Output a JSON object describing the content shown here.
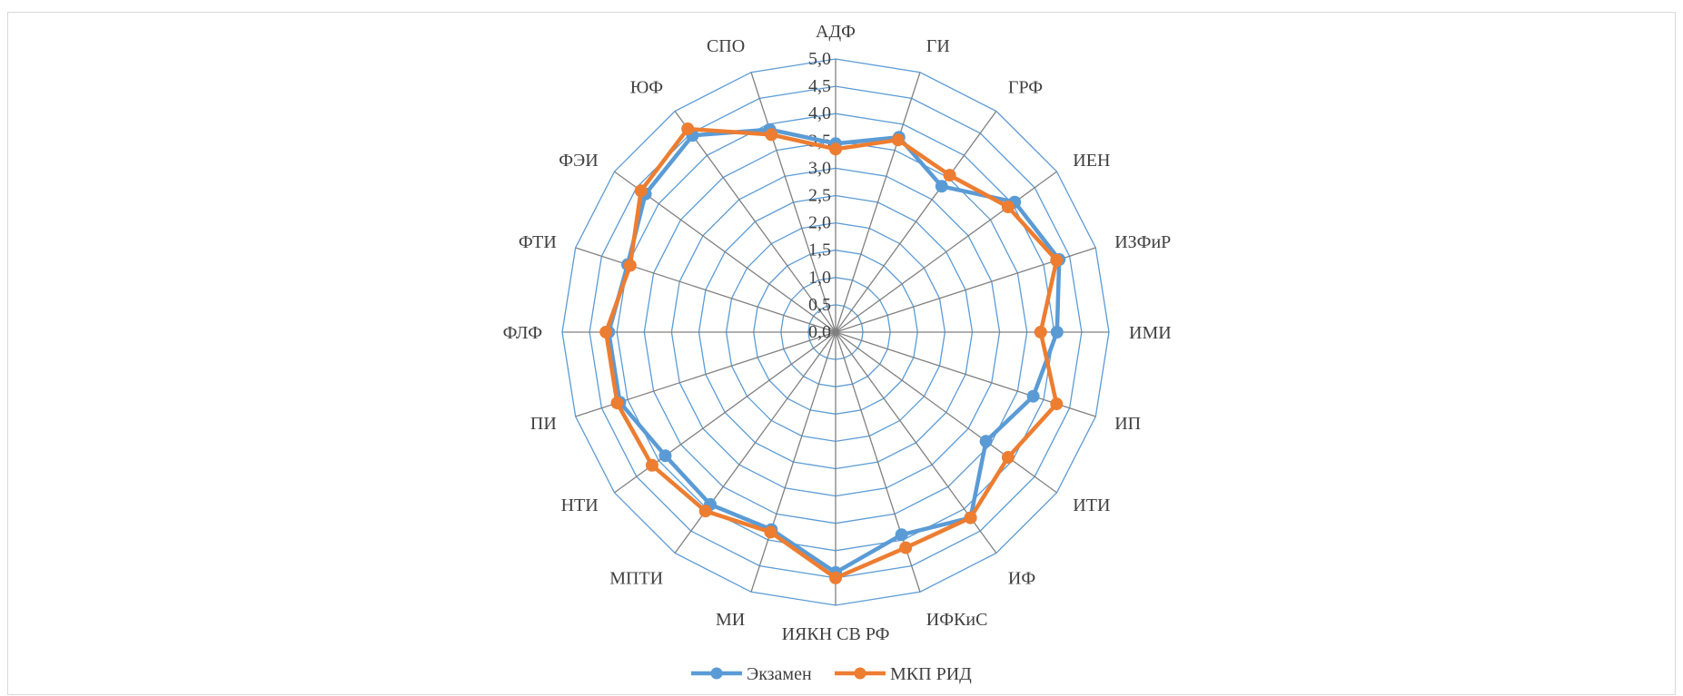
{
  "chart_data": {
    "type": "radar",
    "categories": [
      "АДФ",
      "ГИ",
      "ГРФ",
      "ИЕН",
      "ИЗФиР",
      "ИМИ",
      "ИП",
      "ИТИ",
      "ИФ",
      "ИФКиС",
      "ИЯКН СВ РФ",
      "МИ",
      "МПТИ",
      "НТИ",
      "ПИ",
      "ФЛФ",
      "ФТИ",
      "ФЭИ",
      "ЮФ",
      "СПО"
    ],
    "series": [
      {
        "name": "Экзамен",
        "color": "#5b9bd5",
        "values": [
          3.45,
          3.75,
          3.3,
          4.05,
          4.3,
          4.05,
          3.8,
          3.4,
          4.2,
          3.9,
          4.4,
          3.8,
          3.9,
          3.85,
          4.15,
          4.15,
          4.0,
          4.3,
          4.45,
          3.9
        ]
      },
      {
        "name": "МКП РИД",
        "color": "#ed7d31",
        "values": [
          3.35,
          3.7,
          3.55,
          3.9,
          4.25,
          3.75,
          4.25,
          3.9,
          4.2,
          4.15,
          4.5,
          3.85,
          4.05,
          4.15,
          4.2,
          4.2,
          3.95,
          4.4,
          4.6,
          3.8
        ]
      }
    ],
    "rlim": [
      0,
      5
    ],
    "tick_labels": [
      "0,0",
      "0,5",
      "1,0",
      "1,5",
      "2,0",
      "2,5",
      "3,0",
      "3,5",
      "4,0",
      "4,5",
      "5,0"
    ],
    "legend_position": "bottom",
    "grid_color": "#5b9bd5",
    "spoke_color": "#808080"
  }
}
